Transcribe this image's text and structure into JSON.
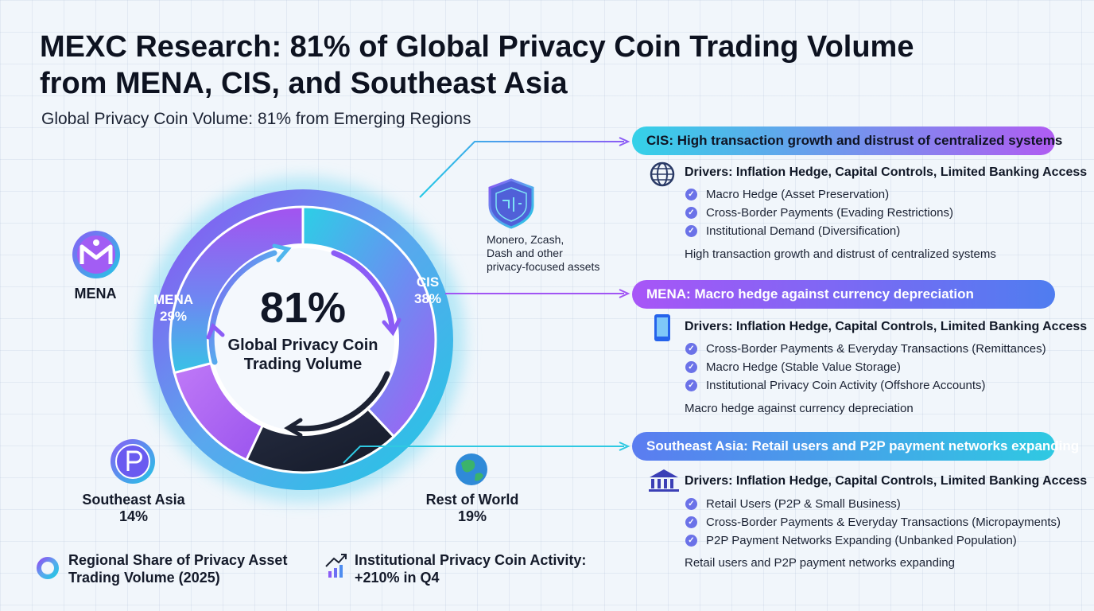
{
  "header": {
    "title_line1": "MEXC Research: 81% of Global Privacy Coin Trading Volume",
    "title_line2": "from MENA, CIS, and Southeast Asia",
    "subtitle": "Global Privacy Coin Volume: 81% from Emerging Regions"
  },
  "colors": {
    "mena": "#a259f0",
    "cis": "#2fc6e6",
    "southeast_asia": "#b26cf5",
    "rest_of_world": "#1c2233",
    "accent_purple": "#8b5cf6",
    "accent_cyan": "#22c8e5"
  },
  "chart_data": {
    "type": "pie",
    "variant": "donut",
    "title": "Regional Share of Privacy Asset Trading Volume (2025)",
    "categories": [
      "CIS",
      "Rest of World",
      "Southeast Asia",
      "MENA"
    ],
    "values": [
      38,
      19,
      14,
      29
    ],
    "unit": "%",
    "center_value": "81%",
    "center_caption": "Global Privacy Coin Trading Volume",
    "labels": {
      "mena_inner": "MENA",
      "mena_inner_value": "29%",
      "cis_inner": "CIS",
      "cis_inner_value": "38%",
      "mena_outer": "MENA",
      "sea_outer": "Southeast Asia",
      "sea_outer_value": "14%",
      "row_outer": "Rest of World",
      "row_outer_value": "19%"
    }
  },
  "icon_note": {
    "icon": "shield-circuit-icon",
    "text_line1": "Monero, Zcash,",
    "text_line2": "Dash and other",
    "text_line3": "privacy-focused assets"
  },
  "regions": [
    {
      "pill": "CIS: High transaction growth and distrust of centralized systems",
      "icon": "globe-icon",
      "drivers": "Drivers: Inflation Hedge, Capital Controls, Limited Banking Access",
      "bullets": [
        "Macro Hedge (Asset Preservation)",
        "Cross-Border Payments (Evading Restrictions)",
        "Institutional Demand (Diversification)"
      ],
      "note": "High transaction growth and distrust of centralized systems"
    },
    {
      "pill": "MENA: Macro hedge against currency depreciation",
      "icon": "smartphone-icon",
      "drivers": "Drivers: Inflation Hedge, Capital Controls, Limited Banking Access",
      "bullets": [
        "Cross-Border Payments & Everyday Transactions (Remittances)",
        "Macro Hedge (Stable Value Storage)",
        "Institutional Privacy Coin Activity (Offshore Accounts)"
      ],
      "note": "Macro hedge against currency depreciation"
    },
    {
      "pill": "Southeast Asia: Retail users and P2P payment networks expanding",
      "icon": "bank-icon",
      "drivers": "Drivers: Inflation Hedge, Capital Controls, Limited Banking Access",
      "bullets": [
        "Retail Users (P2P & Small Business)",
        "Cross-Border Payments & Everyday Transactions (Micropayments)",
        "P2P Payment Networks Expanding (Unbanked Population)"
      ],
      "note": "Retail users and P2P payment networks expanding"
    }
  ],
  "legend": {
    "item1_line1": "Regional Share of Privacy Asset",
    "item1_line2": "Trading Volume (2025)",
    "item2_line1": "Institutional Privacy Coin Activity:",
    "item2_line2": "+210% in Q4"
  }
}
